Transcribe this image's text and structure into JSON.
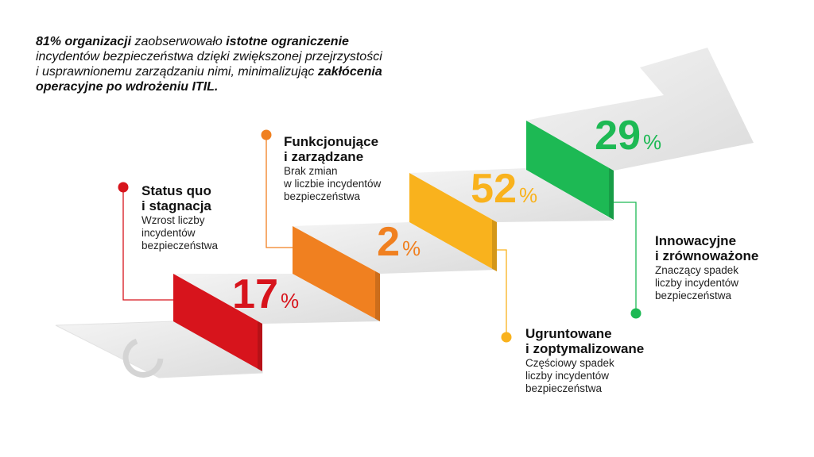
{
  "intro": {
    "lines": [
      [
        {
          "text": "81% organizacji",
          "bold": true
        },
        {
          "text": " zaobserwowało ",
          "bold": false
        },
        {
          "text": "istotne ograniczenie",
          "bold": true
        }
      ],
      [
        {
          "text": "incydentów bezpieczeństwa dzięki zwiększonej przejrzystości",
          "bold": false
        }
      ],
      [
        {
          "text": "i usprawnionemu zarządzaniu nimi, minimalizując ",
          "bold": false
        },
        {
          "text": "zakłócenia",
          "bold": true
        }
      ],
      [
        {
          "text": "operacyjne po wdrożeniu ITIL.",
          "bold": true
        }
      ]
    ]
  },
  "steps": [
    {
      "title": [
        "Status quo",
        "i stagnacja"
      ],
      "description": [
        "Wzrost liczby",
        "incydentów",
        "bezpieczeństwa"
      ],
      "value": 17,
      "unit": "%",
      "color": "#d7141c"
    },
    {
      "title": [
        "Funkcjonujące",
        "i zarządzane"
      ],
      "description": [
        "Brak zmian",
        "w liczbie incydentów",
        "bezpieczeństwa"
      ],
      "value": 2,
      "unit": "%",
      "color": "#f08020"
    },
    {
      "title": [
        "Ugruntowane",
        "i zoptymalizowane"
      ],
      "description": [
        "Częściowy spadek",
        "liczby incydentów",
        "bezpieczeństwa"
      ],
      "value": 52,
      "unit": "%",
      "color": "#f9b21d"
    },
    {
      "title": [
        "Innowacyjne",
        "i zrównoważone"
      ],
      "description": [
        "Znaczący spadek",
        "liczby incydentów",
        "bezpieczeństwa"
      ],
      "value": 29,
      "unit": "%",
      "color": "#1db954"
    }
  ]
}
